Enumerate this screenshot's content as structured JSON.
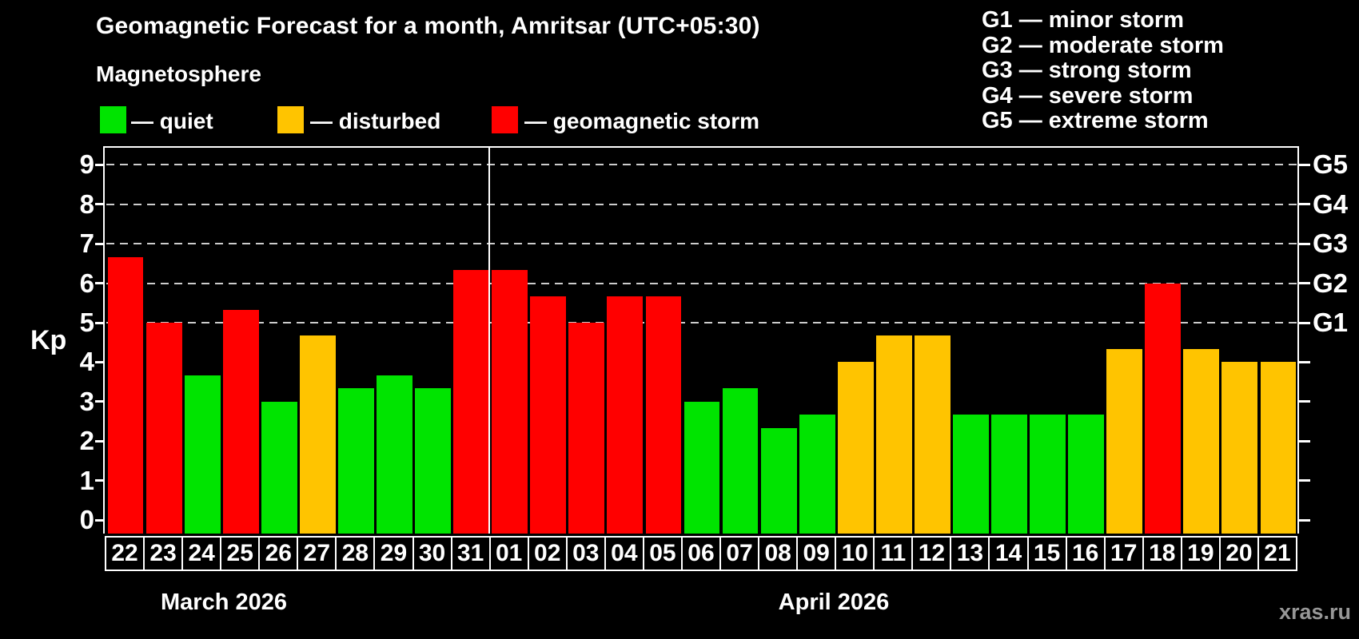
{
  "header": {
    "title": "Geomagnetic Forecast for a month, Amritsar (UTC+05:30)",
    "subtitle": "Magnetosphere"
  },
  "legend": {
    "items": [
      {
        "label": "— quiet",
        "color": "#00e400"
      },
      {
        "label": "— disturbed",
        "color": "#ffc400"
      },
      {
        "label": "— geomagnetic storm",
        "color": "#ff0000"
      }
    ]
  },
  "g_legend": {
    "lines": [
      "G1 — minor storm",
      "G2 — moderate storm",
      "G3 — strong storm",
      "G4 — severe storm",
      "G5 — extreme storm"
    ]
  },
  "axes": {
    "kp_label": "Kp",
    "y_ticks": [
      "0",
      "1",
      "2",
      "3",
      "4",
      "5",
      "6",
      "7",
      "8",
      "9"
    ],
    "g_ticks": [
      {
        "kp": 5,
        "label": "G1"
      },
      {
        "kp": 6,
        "label": "G2"
      },
      {
        "kp": 7,
        "label": "G3"
      },
      {
        "kp": 8,
        "label": "G4"
      },
      {
        "kp": 9,
        "label": "G5"
      }
    ]
  },
  "months": {
    "march": "March 2026",
    "april": "April 2026"
  },
  "watermark": "xras.ru",
  "colors": {
    "quiet": "#00e400",
    "disturbed": "#ffc400",
    "storm": "#ff0000",
    "grid": "#cccccc",
    "frame": "#ffffff"
  },
  "chart_data": {
    "type": "bar",
    "title": "Geomagnetic Forecast for a month, Amritsar (UTC+05:30)",
    "subtitle": "Magnetosphere",
    "ylabel": "Kp",
    "ylim": [
      0,
      9.4
    ],
    "grid": "dashed horizontal lines at Kp 5,6,7,8,9 (G1–G5 storm levels)",
    "legend_position": "top",
    "right_axis_labels": [
      "G1",
      "G2",
      "G3",
      "G4",
      "G5"
    ],
    "categories": [
      "22",
      "23",
      "24",
      "25",
      "26",
      "27",
      "28",
      "29",
      "30",
      "31",
      "01",
      "02",
      "03",
      "04",
      "05",
      "06",
      "07",
      "08",
      "09",
      "10",
      "11",
      "12",
      "13",
      "14",
      "15",
      "16",
      "17",
      "18",
      "19",
      "20",
      "21"
    ],
    "values": [
      6.67,
      5.0,
      3.67,
      5.33,
      3.0,
      4.67,
      3.33,
      3.67,
      3.33,
      6.33,
      6.33,
      5.67,
      5.0,
      5.67,
      5.67,
      3.0,
      3.33,
      2.33,
      2.67,
      4.0,
      4.67,
      4.67,
      2.67,
      2.67,
      2.67,
      2.67,
      4.33,
      6.0,
      4.33,
      4.0,
      4.0
    ],
    "statuses": [
      "storm",
      "storm",
      "quiet",
      "storm",
      "quiet",
      "disturbed",
      "quiet",
      "quiet",
      "quiet",
      "storm",
      "storm",
      "storm",
      "storm",
      "storm",
      "storm",
      "quiet",
      "quiet",
      "quiet",
      "quiet",
      "disturbed",
      "disturbed",
      "disturbed",
      "quiet",
      "quiet",
      "quiet",
      "quiet",
      "disturbed",
      "storm",
      "disturbed",
      "disturbed",
      "disturbed"
    ],
    "groups": [
      {
        "month": "March 2026",
        "categories": [
          "22",
          "23",
          "24",
          "25",
          "26",
          "27",
          "28",
          "29",
          "30",
          "31"
        ]
      },
      {
        "month": "April 2026",
        "categories": [
          "01",
          "02",
          "03",
          "04",
          "05",
          "06",
          "07",
          "08",
          "09",
          "10",
          "11",
          "12",
          "13",
          "14",
          "15",
          "16",
          "17",
          "18",
          "19",
          "20",
          "21"
        ]
      }
    ]
  }
}
